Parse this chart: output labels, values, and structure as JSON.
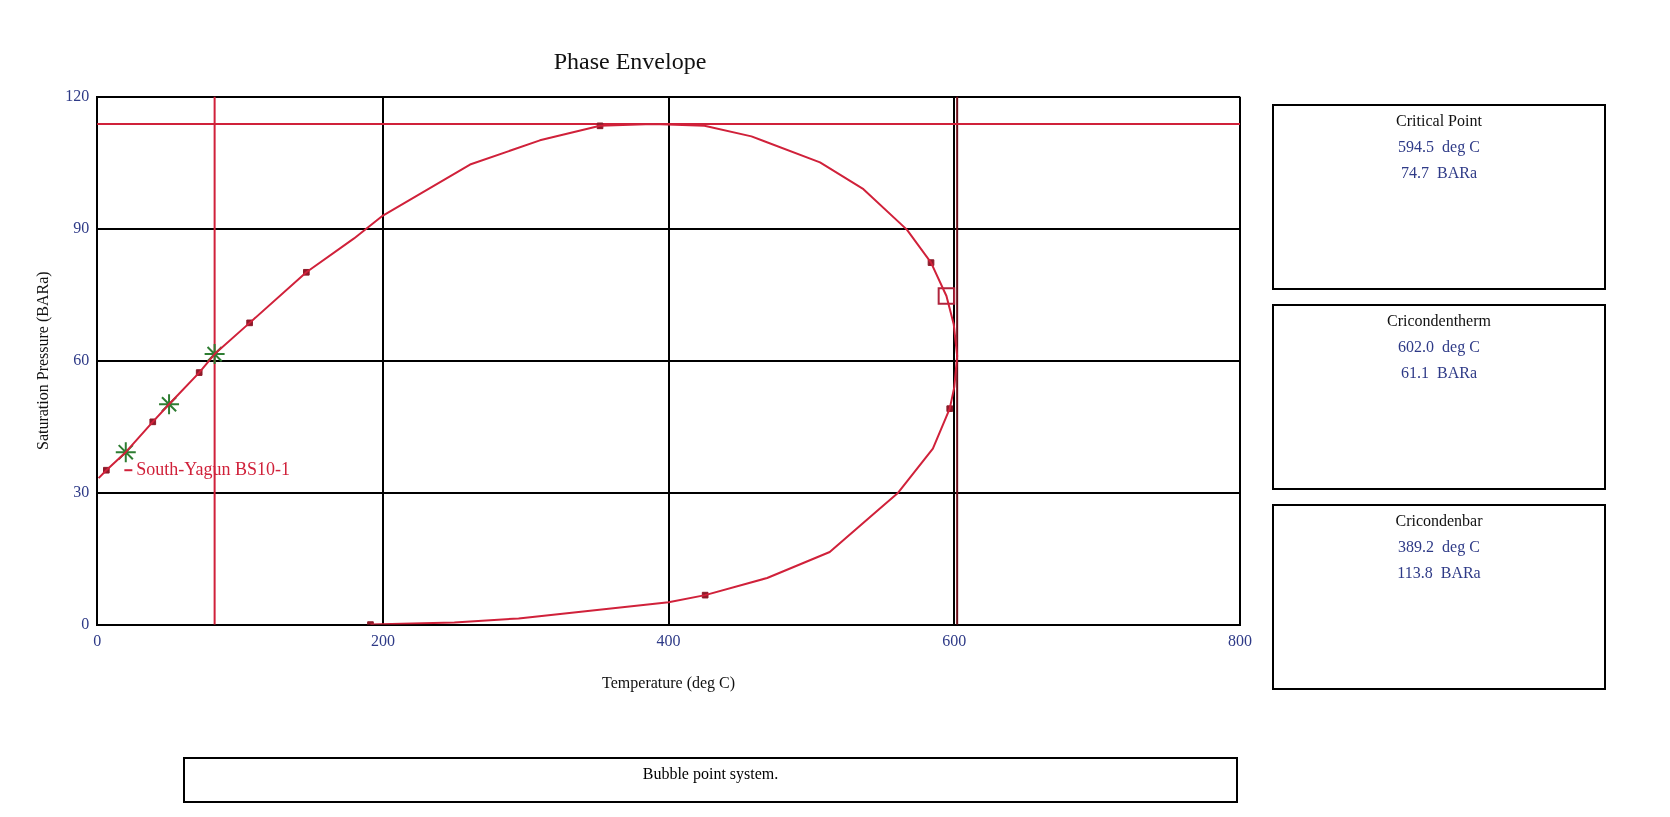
{
  "chart_data": {
    "type": "line",
    "title": "Phase Envelope",
    "xlabel": "Temperature (deg C)",
    "ylabel": "Saturation Pressure (BARa)",
    "xlim": [
      0,
      800
    ],
    "xticks": [
      0,
      200,
      400,
      600,
      800
    ],
    "ylim": [
      0,
      120
    ],
    "yticks": [
      0,
      30,
      60,
      90,
      120
    ],
    "grid": true,
    "legend": "left",
    "series": [
      {
        "type": "line",
        "name": "South-Yagun BS10-1",
        "color": "#d0213a",
        "marker": "none",
        "x": [
          1,
          6.4,
          20,
          38.9,
          50.3,
          71.4,
          82.2,
          106.7,
          146.4,
          179.8,
          200,
          261,
          309.9,
          352,
          389.2,
          425.1,
          458,
          506,
          536.4,
          566.8,
          583.7,
          594.5,
          599.6,
          602.0,
          600,
          596.8,
          585,
          560.7,
          512.8,
          469,
          425.6,
          400,
          295,
          250,
          191.3
        ],
        "values": [
          33.3,
          35.1,
          39.2,
          46.1,
          50.1,
          57.3,
          61.5,
          68.6,
          80.1,
          87.8,
          93.0,
          104.6,
          110.1,
          113.4,
          113.8,
          113.4,
          111.0,
          105.1,
          99.0,
          89.8,
          82.3,
          74.7,
          68.3,
          61.1,
          54,
          49.1,
          40,
          30.0,
          16.5,
          10.6,
          6.7,
          5.1,
          1.4,
          0.5,
          0
        ]
      },
      {
        "type": "scatter",
        "color": "#8e1b2a",
        "marker": "square",
        "x": [
          6.4,
          38.9,
          71.4,
          106.7,
          146.4,
          352,
          583.7,
          596.8,
          425.6,
          191.3
        ],
        "values": [
          35.1,
          46.1,
          57.3,
          68.6,
          80.1,
          113.4,
          82.3,
          49.1,
          6.7,
          0
        ]
      },
      {
        "type": "scatter",
        "color": "#2e7d32",
        "marker": "cross",
        "x": [
          20,
          50.3,
          82.2
        ],
        "values": [
          39.2,
          50.1,
          61.5
        ]
      },
      {
        "type": "scatter",
        "color": "#b0243c",
        "marker": "rect",
        "x": [
          594.5
        ],
        "values": [
          74.7
        ]
      }
    ],
    "ref_lines": [
      {
        "axis": "x",
        "value": 82.2,
        "color": "#d0213a"
      },
      {
        "axis": "x",
        "value": 602.0,
        "color": "#6b0f1a"
      },
      {
        "axis": "y",
        "value": 113.8,
        "color": "#d0213a"
      }
    ],
    "annotations": [
      "Critical Point",
      "594.5  deg C",
      "74.7  BARa",
      "Cricondentherm",
      "602.0  deg C",
      "61.1  BARa",
      "Cricondenbar",
      "389.2  deg C",
      "113.8  BARa",
      "Bubble point system."
    ]
  }
}
